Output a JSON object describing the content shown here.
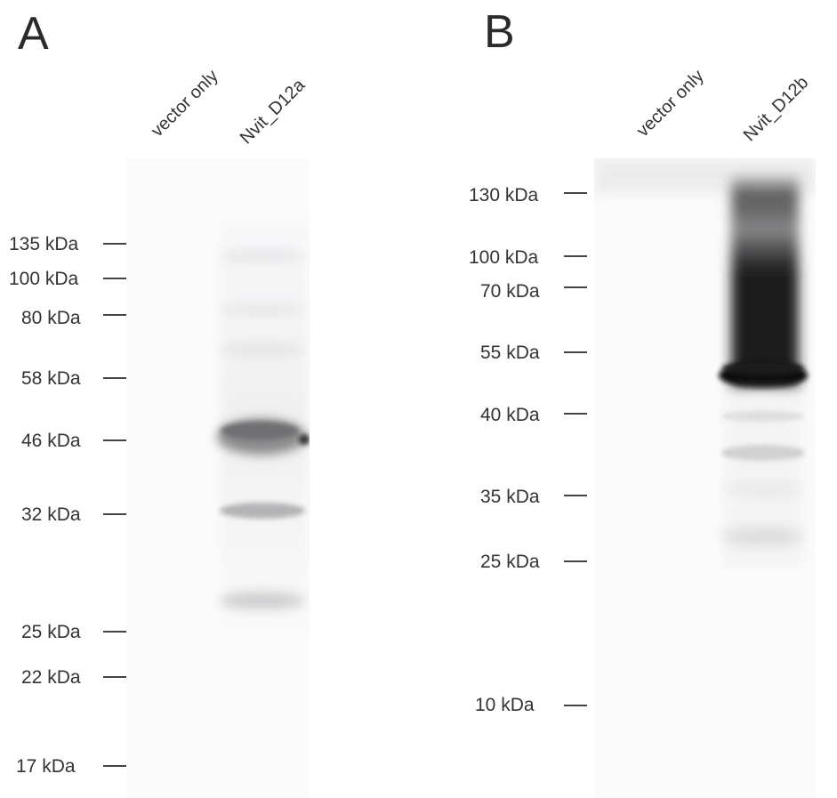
{
  "panels": [
    {
      "letter": "A",
      "lanes": [
        "vector only",
        "Nvit_D12a"
      ],
      "markers": [
        "135 kDa",
        "100 kDa",
        "80 kDa",
        "58 kDa",
        "46 kDa",
        "32 kDa",
        "25 kDa",
        "22 kDa",
        "17 kDa"
      ]
    },
    {
      "letter": "B",
      "lanes": [
        "vector only",
        "Nvit_D12b"
      ],
      "markers": [
        "130 kDa",
        "100 kDa",
        "70 kDa",
        "55 kDa",
        "40 kDa",
        "35 kDa",
        "25 kDa",
        "10 kDa"
      ]
    }
  ],
  "colors": {
    "text": "#333333",
    "blot_background": "#fbfbfb",
    "band_dark": "#0a0a0a"
  }
}
